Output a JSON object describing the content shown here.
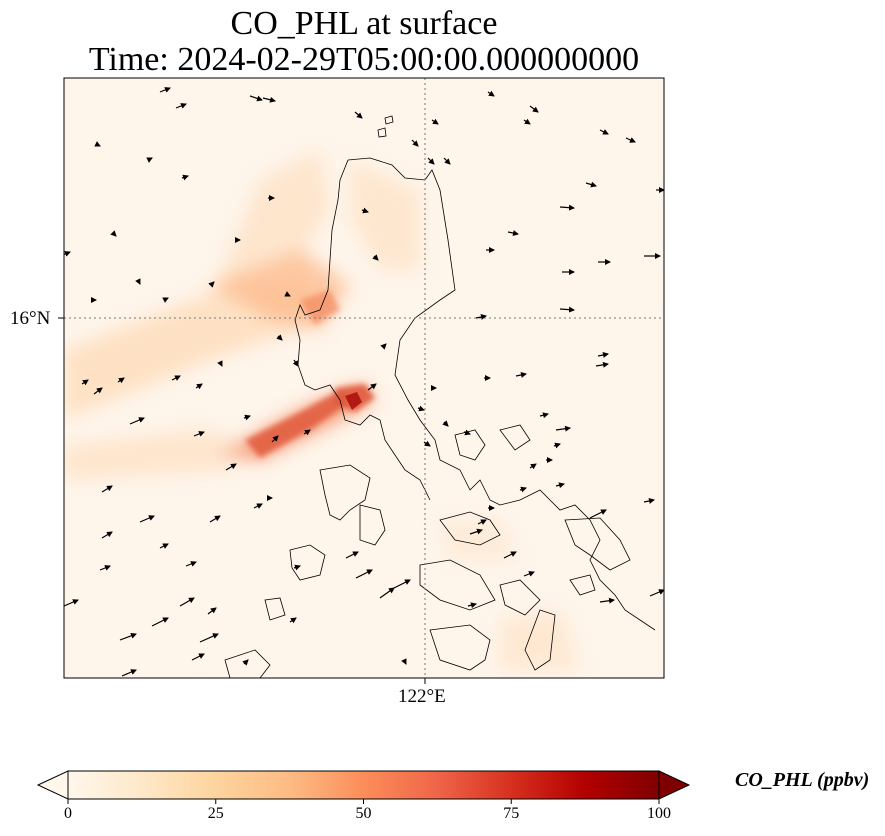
{
  "title": {
    "line1": "CO_PHL at surface",
    "line2": "Time: 2024-02-29T05:00:00.000000000"
  },
  "map": {
    "lat_tick_label": "16°N",
    "lon_tick_label": "122°E",
    "background_color": "#fef5eb",
    "coastline_color": "#000000",
    "gridline_style": "dotted",
    "plume_peak_ppbv": 80,
    "plume_colors": [
      "#fdd9b4",
      "#fcb98b",
      "#f4865b",
      "#e05a3d",
      "#b01a12"
    ]
  },
  "colorbar": {
    "label": "CO_PHL (ppbv)",
    "ticks": [
      "0",
      "25",
      "50",
      "75",
      "100"
    ],
    "min": 0,
    "max": 100,
    "extend": "both",
    "cmap": "OrRd",
    "colors": [
      "#fff7ec",
      "#fee8c8",
      "#fdd49e",
      "#fdbb84",
      "#fc8d59",
      "#ef6548",
      "#d7301f",
      "#b30000",
      "#7f0000"
    ]
  },
  "chart_data": {
    "type": "heatmap",
    "title": "CO_PHL at surface\nTime: 2024-02-29T05:00:00.000000000",
    "xlabel": "",
    "ylabel": "",
    "x_ticks": [
      "122°E"
    ],
    "y_ticks": [
      "16°N"
    ],
    "value_range": [
      0,
      100
    ],
    "units": "ppbv",
    "overlay": "wind vectors"
  }
}
